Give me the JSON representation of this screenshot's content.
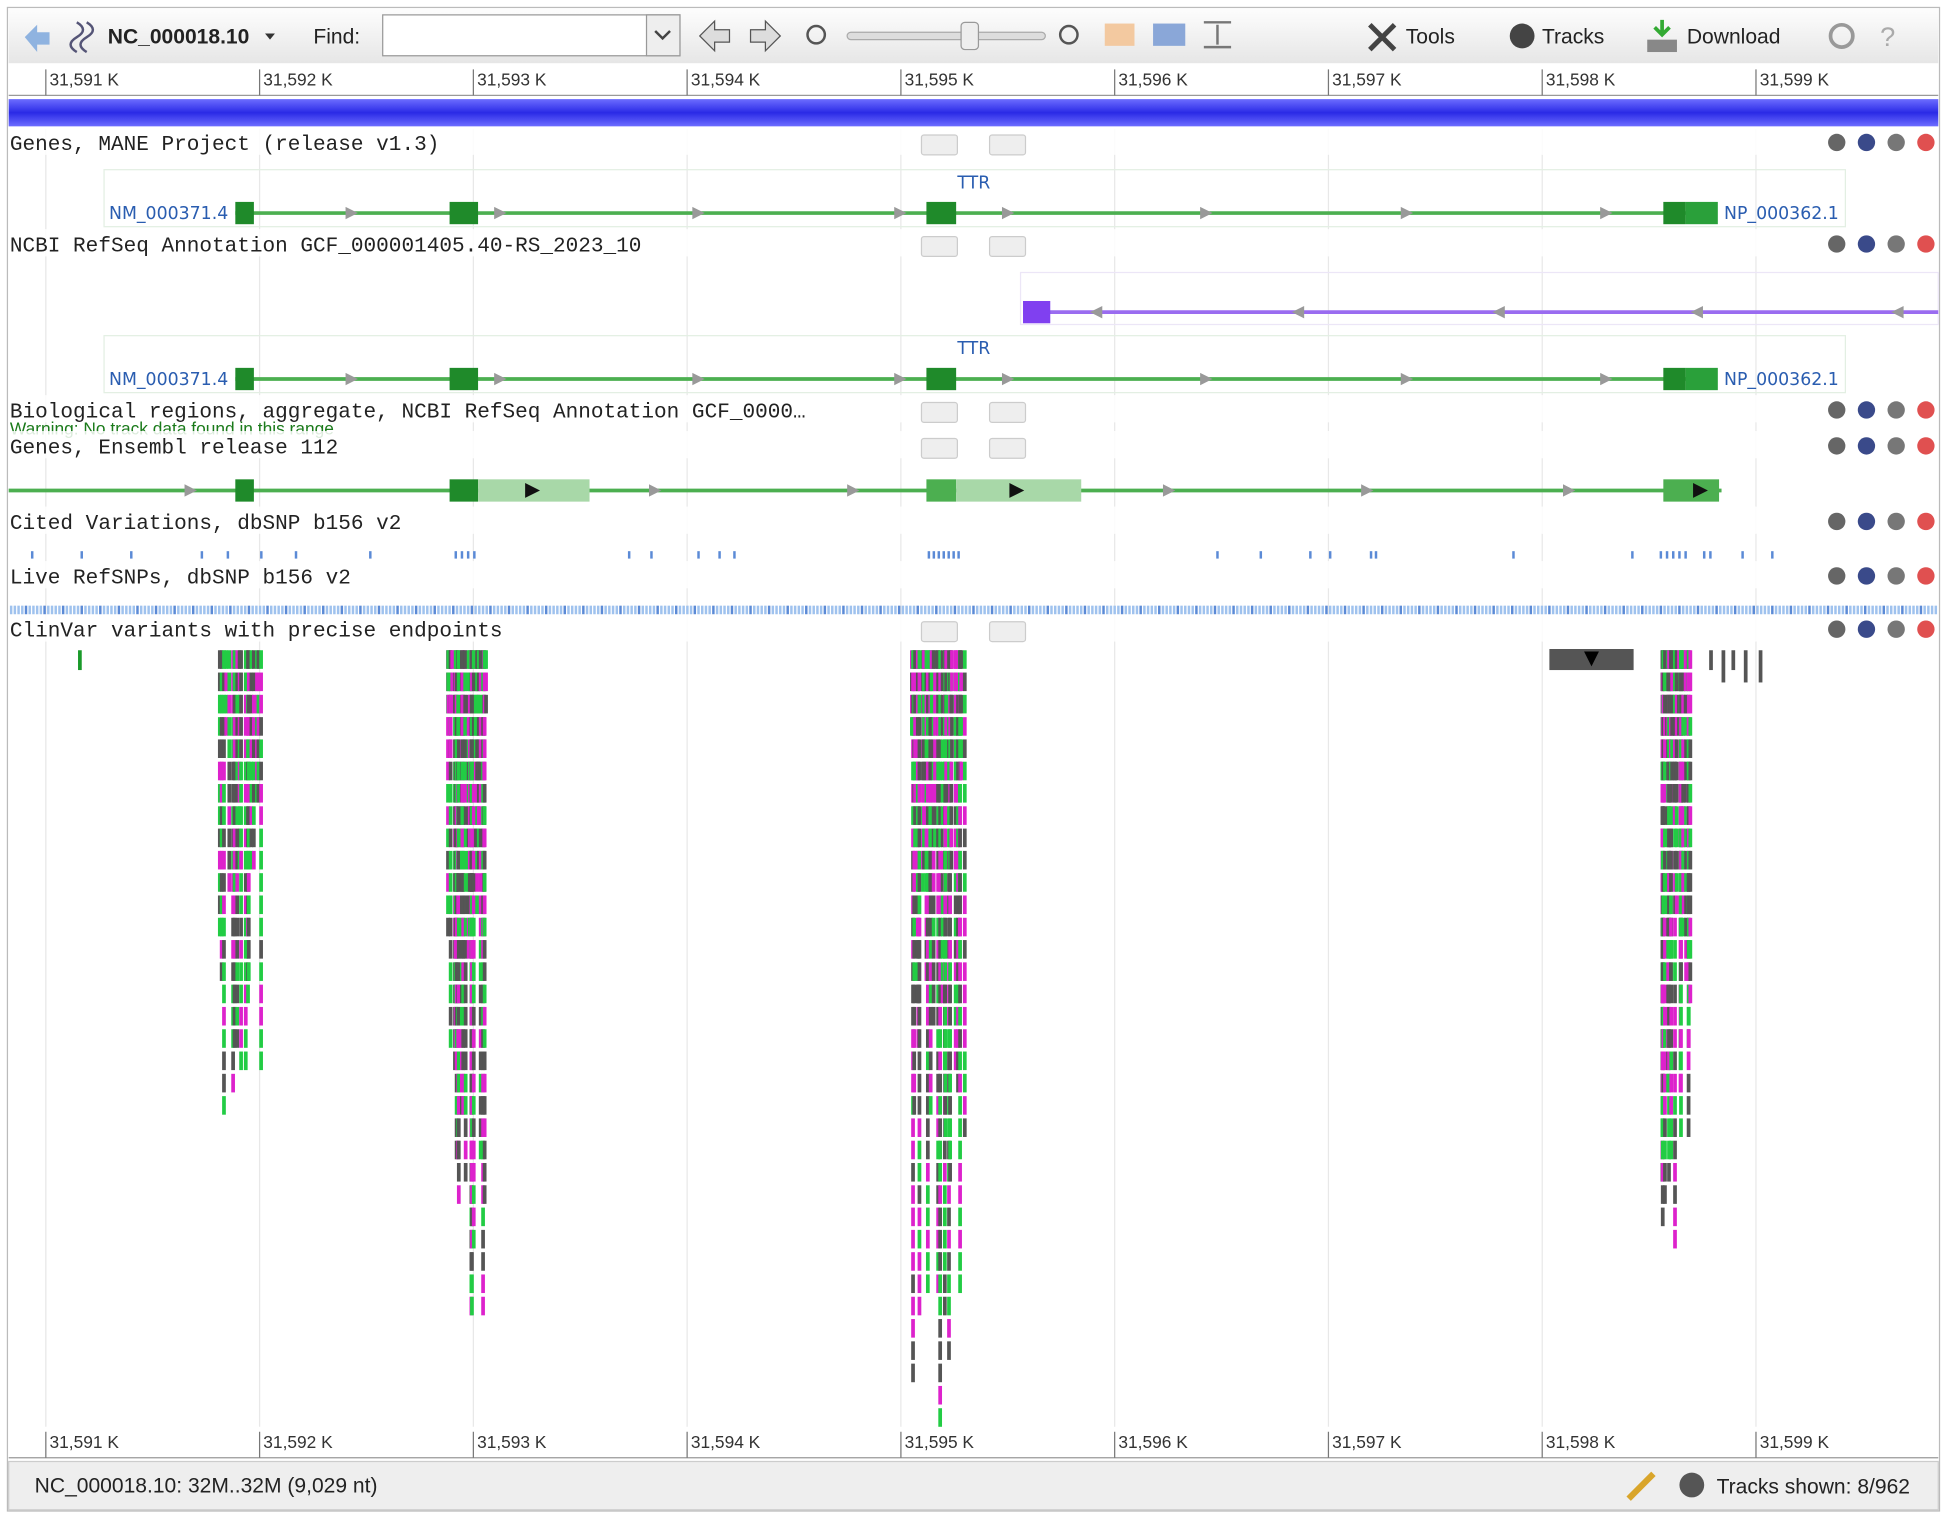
{
  "toolbar": {
    "sequence": "NC_000018.10",
    "find_label": "Find:",
    "tools": "Tools",
    "tracks": "Tracks",
    "download": "Download"
  },
  "ruler": {
    "ticks": [
      "31,591 K",
      "31,592 K",
      "31,593 K",
      "31,594 K",
      "31,595 K",
      "31,596 K",
      "31,597 K",
      "31,598 K",
      "31,599 K"
    ]
  },
  "tracks": [
    {
      "name": "Genes, MANE Project (release v1.3)",
      "gene": "TTR",
      "transcript": "NM_000371.4",
      "protein": "NP_000362.1"
    },
    {
      "name": "NCBI RefSeq Annotation GCF_000001405.40-RS_2023_10",
      "gene": "TTR",
      "transcript": "NM_000371.4",
      "protein": "NP_000362.1"
    },
    {
      "name": "Biological regions, aggregate, NCBI RefSeq Annotation GCF_0000…",
      "warning": "Warning: No track data found in this range"
    },
    {
      "name": "Genes, Ensembl release 112"
    },
    {
      "name": "Cited Variations, dbSNP b156 v2"
    },
    {
      "name": "Live RefSNPs, dbSNP b156 v2"
    },
    {
      "name": "ClinVar variants with precise endpoints"
    }
  ],
  "status": {
    "location": "NC_000018.10: 32M..32M (9,029 nt)",
    "tracks_shown": "Tracks shown: 8/962"
  }
}
